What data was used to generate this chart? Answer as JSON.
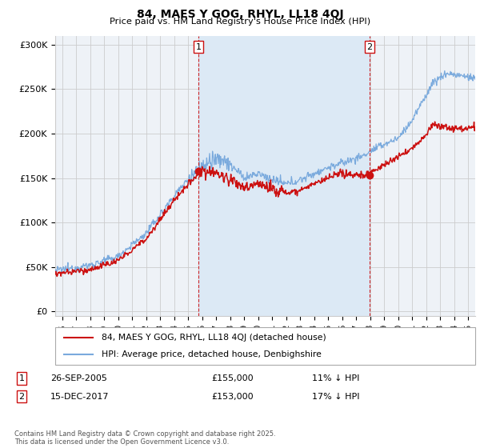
{
  "title1": "84, MAES Y GOG, RHYL, LL18 4QJ",
  "title2": "Price paid vs. HM Land Registry's House Price Index (HPI)",
  "ylabel_ticks": [
    "£0",
    "£50K",
    "£100K",
    "£150K",
    "£200K",
    "£250K",
    "£300K"
  ],
  "ytick_vals": [
    0,
    50000,
    100000,
    150000,
    200000,
    250000,
    300000
  ],
  "ylim": [
    -5000,
    310000
  ],
  "xlim_start": 1995.5,
  "xlim_end": 2025.5,
  "marker1_date": 2005.73,
  "marker2_date": 2017.96,
  "marker1_label": "1",
  "marker2_label": "2",
  "transaction1": "26-SEP-2005",
  "transaction1_price": "£155,000",
  "transaction1_hpi": "11% ↓ HPI",
  "transaction2": "15-DEC-2017",
  "transaction2_price": "£153,000",
  "transaction2_hpi": "17% ↓ HPI",
  "legend_line1": "84, MAES Y GOG, RHYL, LL18 4QJ (detached house)",
  "legend_line2": "HPI: Average price, detached house, Denbighshire",
  "footer": "Contains HM Land Registry data © Crown copyright and database right 2025.\nThis data is licensed under the Open Government Licence v3.0.",
  "hpi_color": "#7aaadd",
  "price_color": "#cc1111",
  "shade_color": "#dce9f5",
  "bg_color": "#eef2f7",
  "grid_color": "#cccccc"
}
